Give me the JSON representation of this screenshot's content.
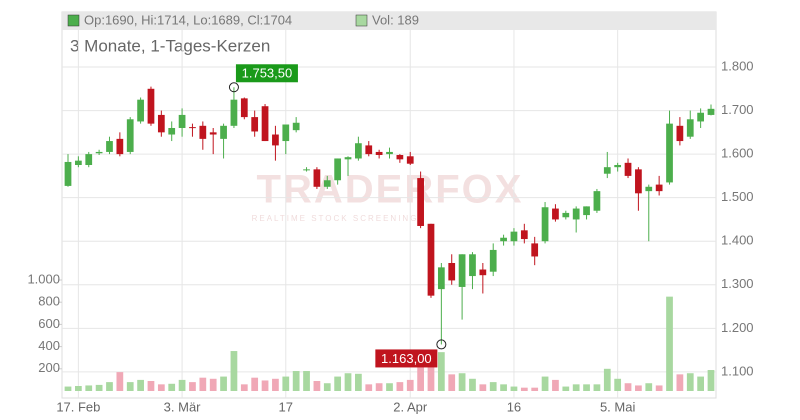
{
  "chart_data": {
    "type": "candlestick",
    "subtitle": "3 Monate, 1-Tages-Kerzen",
    "watermark": "TRADERFOX",
    "watermark_sub": "REALTIME STOCK SCREENING",
    "legend": {
      "ohlc": "Op:1690, Hi:1714, Lo:1689, Cl:1704",
      "volume": "Vol: 189"
    },
    "categories": [
      null,
      "17. Feb",
      null,
      null,
      null,
      null,
      null,
      null,
      null,
      null,
      null,
      "3. Mär",
      null,
      null,
      null,
      null,
      null,
      null,
      null,
      null,
      null,
      "17",
      null,
      null,
      null,
      null,
      null,
      null,
      null,
      null,
      null,
      null,
      null,
      "2. Apr",
      null,
      null,
      null,
      null,
      null,
      null,
      null,
      null,
      null,
      "16",
      null,
      null,
      null,
      null,
      null,
      null,
      null,
      null,
      null,
      "5. Mai",
      null,
      null,
      null,
      null,
      null,
      null,
      null,
      null,
      null
    ],
    "open": [
      1527,
      1575,
      1575,
      1602,
      1605,
      1635,
      1605,
      1675,
      1750,
      1690,
      1645,
      1660,
      1662,
      1665,
      1650,
      1635,
      1665,
      1728,
      1685,
      1710,
      1645,
      1630,
      1655,
      1565,
      1565,
      1525,
      1540,
      1588,
      1590,
      1620,
      1605,
      1600,
      1598,
      1595,
      1545,
      1440,
      1290,
      1350,
      1295,
      1320,
      1335,
      1330,
      1400,
      1400,
      1425,
      1395,
      1400,
      1475,
      1455,
      1450,
      1460,
      1470,
      1555,
      1570,
      1580,
      1565,
      1515,
      1530,
      1535,
      1665,
      1640,
      1675,
      1690
    ],
    "high": [
      1600,
      1595,
      1605,
      1610,
      1640,
      1650,
      1685,
      1730,
      1755,
      1700,
      1675,
      1705,
      1670,
      1675,
      1660,
      1670,
      1753.5,
      1730,
      1700,
      1715,
      1665,
      1665,
      1685,
      1570,
      1570,
      1550,
      1590,
      1595,
      1640,
      1630,
      1610,
      1615,
      1600,
      1605,
      1560,
      1440,
      1350,
      1370,
      1370,
      1375,
      1350,
      1395,
      1415,
      1430,
      1440,
      1410,
      1490,
      1485,
      1470,
      1480,
      1480,
      1520,
      1605,
      1580,
      1590,
      1570,
      1530,
      1550,
      1700,
      1685,
      1700,
      1705,
      1714
    ],
    "low": [
      1525,
      1570,
      1570,
      1598,
      1600,
      1595,
      1600,
      1670,
      1665,
      1640,
      1630,
      1640,
      1640,
      1610,
      1600,
      1590,
      1660,
      1680,
      1640,
      1630,
      1585,
      1600,
      1650,
      1560,
      1520,
      1520,
      1530,
      1550,
      1585,
      1595,
      1590,
      1590,
      1580,
      1575,
      1430,
      1270,
      1163,
      1300,
      1220,
      1290,
      1280,
      1320,
      1390,
      1390,
      1395,
      1345,
      1395,
      1445,
      1450,
      1420,
      1450,
      1465,
      1545,
      1560,
      1545,
      1470,
      1400,
      1505,
      1530,
      1620,
      1635,
      1660,
      1689
    ],
    "close": [
      1582,
      1585,
      1600,
      1605,
      1630,
      1600,
      1680,
      1725,
      1670,
      1650,
      1660,
      1690,
      1660,
      1635,
      1645,
      1665,
      1725,
      1685,
      1652,
      1630,
      1620,
      1668,
      1672,
      1565,
      1525,
      1540,
      1590,
      1593,
      1625,
      1600,
      1598,
      1605,
      1588,
      1578,
      1435,
      1275,
      1340,
      1310,
      1370,
      1370,
      1322,
      1380,
      1408,
      1422,
      1405,
      1365,
      1478,
      1450,
      1465,
      1475,
      1480,
      1515,
      1570,
      1575,
      1550,
      1510,
      1525,
      1515,
      1670,
      1630,
      1680,
      1695,
      1704
    ],
    "volume": [
      40,
      45,
      50,
      55,
      80,
      170,
      80,
      100,
      90,
      60,
      65,
      100,
      80,
      120,
      110,
      130,
      360,
      60,
      120,
      95,
      110,
      130,
      180,
      180,
      90,
      70,
      130,
      160,
      155,
      60,
      70,
      70,
      80,
      100,
      270,
      300,
      350,
      150,
      160,
      110,
      60,
      80,
      60,
      40,
      30,
      30,
      130,
      100,
      40,
      60,
      60,
      60,
      200,
      110,
      70,
      50,
      70,
      50,
      850,
      150,
      160,
      130,
      189
    ],
    "ylim": [
      1040,
      1885
    ],
    "yticks": [
      {
        "value": 1100,
        "label": "1.100"
      },
      {
        "value": 1200,
        "label": "1.200"
      },
      {
        "value": 1300,
        "label": "1.300"
      },
      {
        "value": 1400,
        "label": "1.400"
      },
      {
        "value": 1500,
        "label": "1.500"
      },
      {
        "value": 1600,
        "label": "1.600"
      },
      {
        "value": 1700,
        "label": "1.700"
      },
      {
        "value": 1800,
        "label": "1.800"
      }
    ],
    "y2lim": [
      0,
      1000
    ],
    "y2ticks": [
      200,
      400,
      600,
      800,
      {
        "value": 1000,
        "label": "1.000"
      }
    ],
    "annotations": [
      {
        "index": 16,
        "value": 1753.5,
        "label": "1.753,50",
        "color": "#1a9a1a"
      },
      {
        "index": 36,
        "value": 1163,
        "label": "1.163,00",
        "color": "#c0141e"
      }
    ],
    "up_color": "#4cae4c",
    "down_color": "#c0141e",
    "volume_up_color": "#a8d8a0",
    "volume_down_color": "#f0a8b6",
    "grid": true
  }
}
